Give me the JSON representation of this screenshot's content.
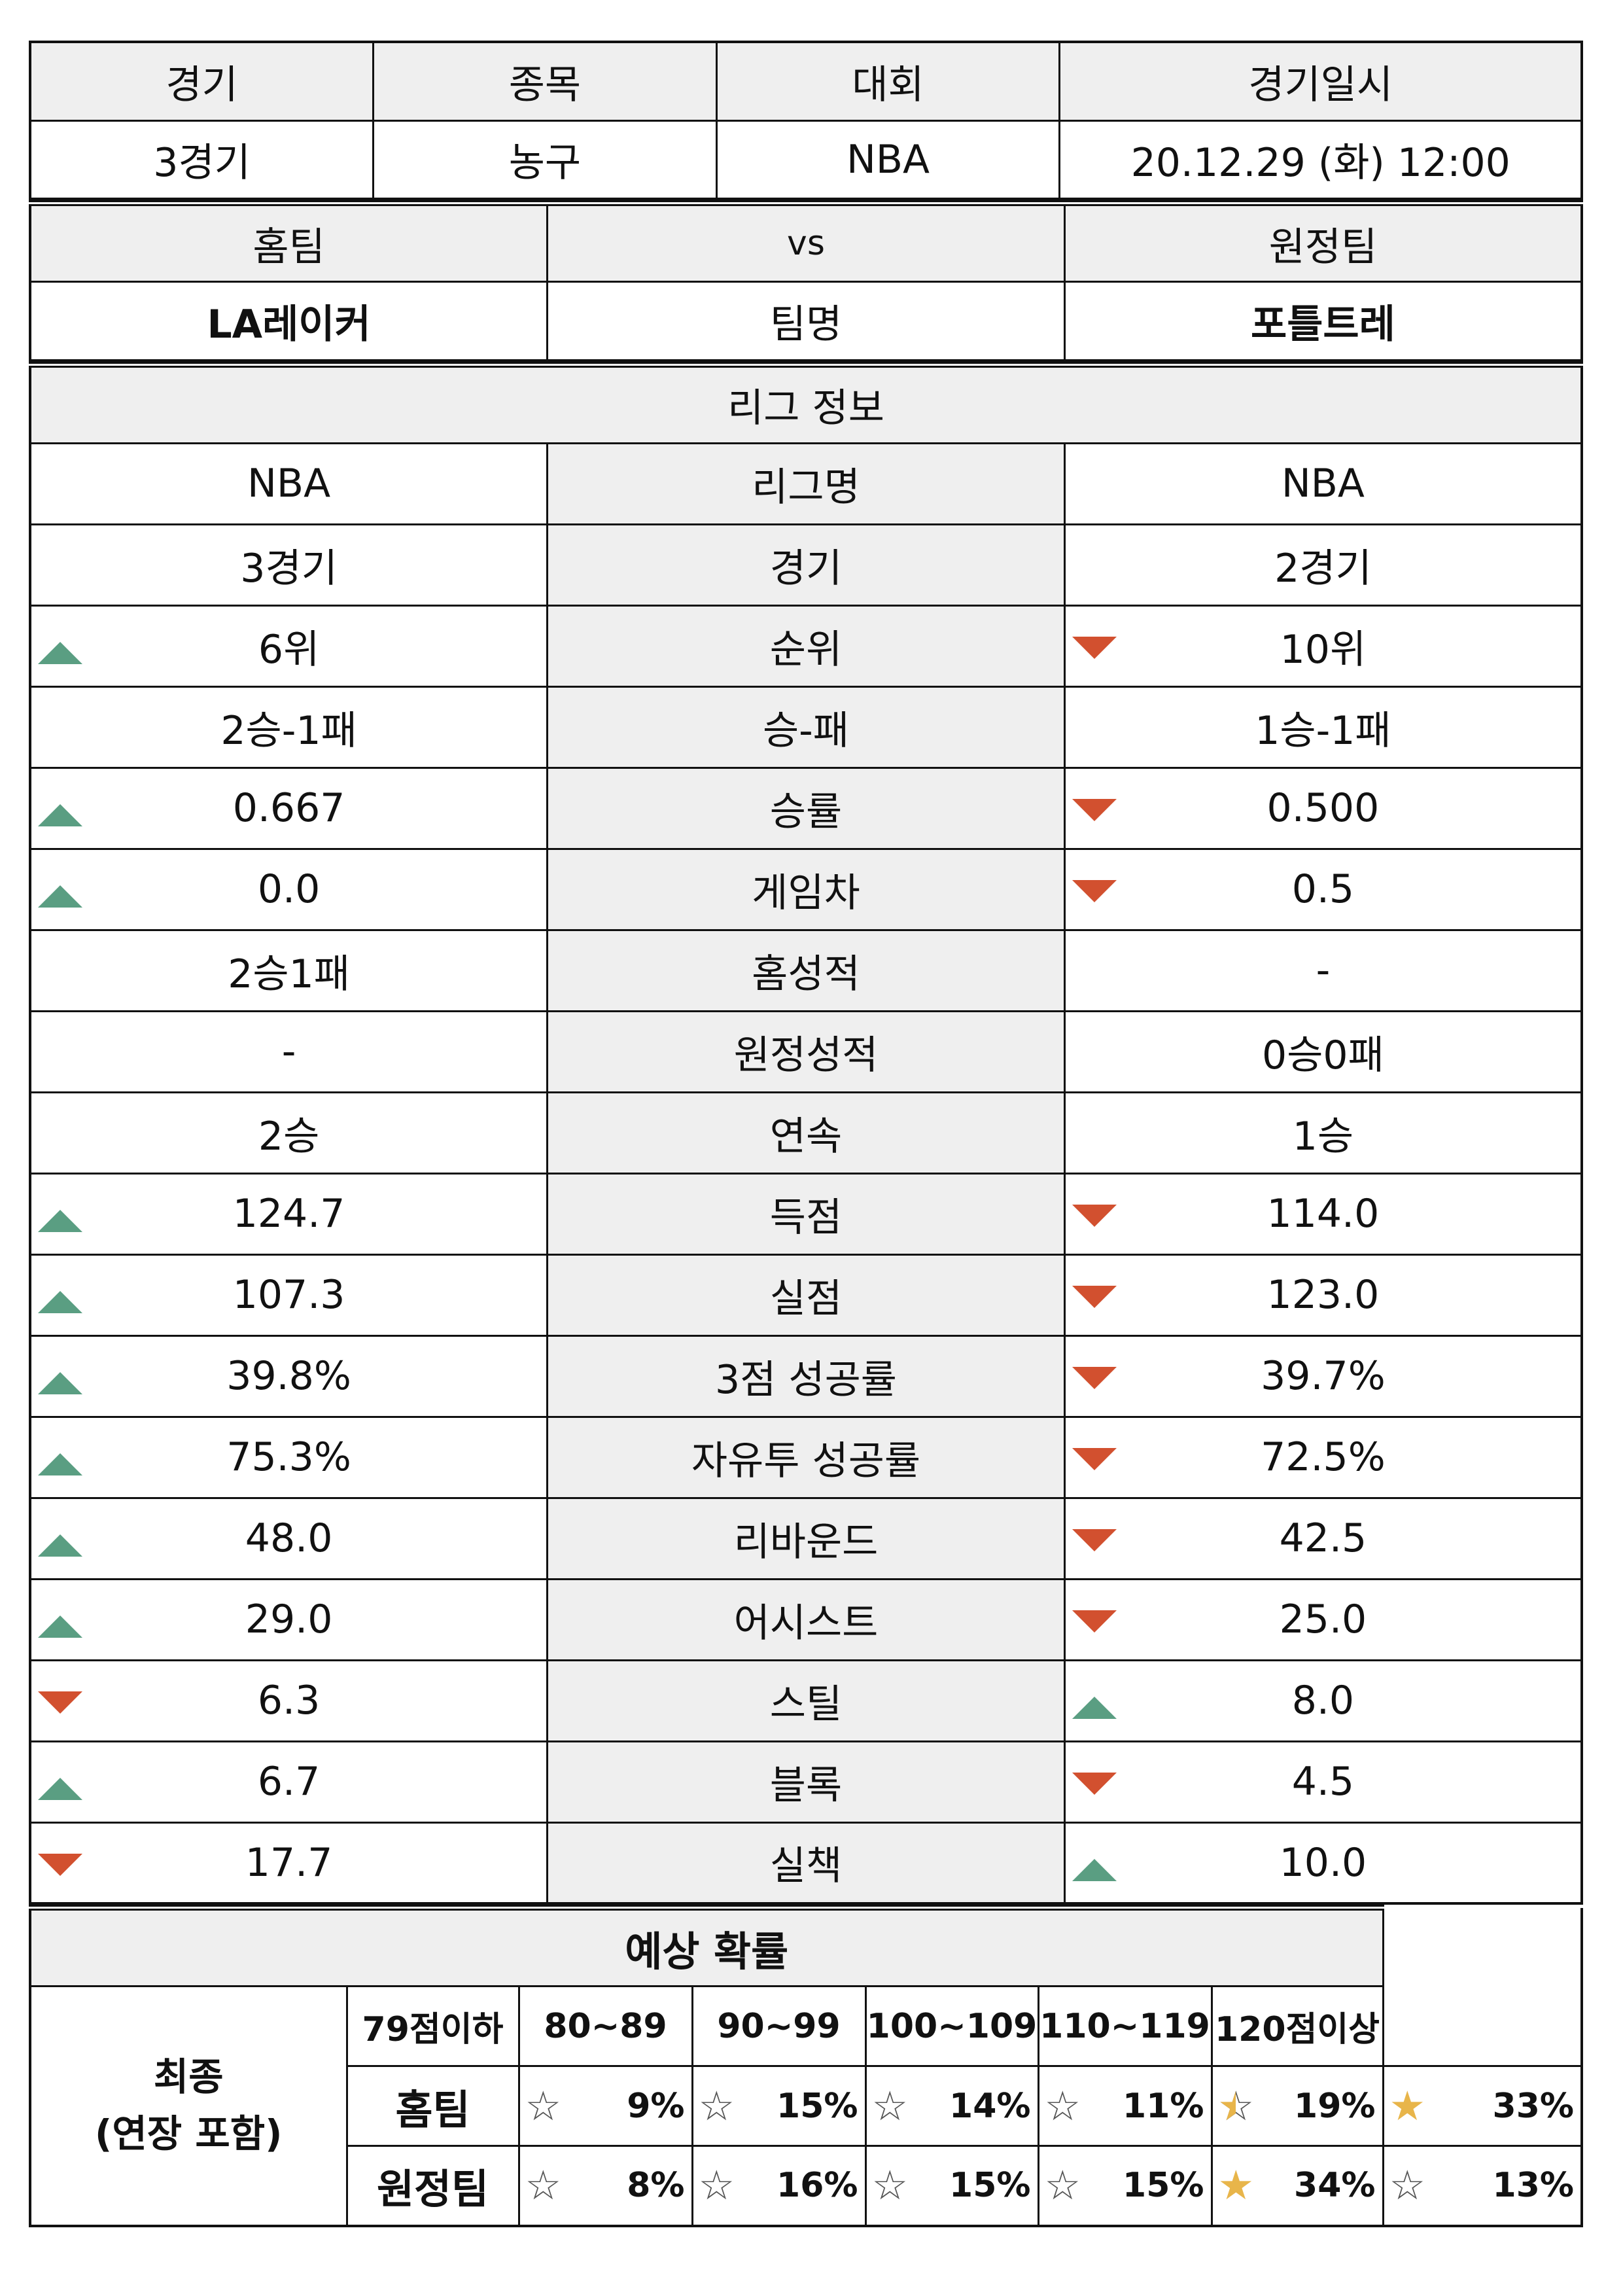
{
  "header": {
    "labels": [
      "경기",
      "종목",
      "대회",
      "경기일시"
    ],
    "values": [
      "3경기",
      "농구",
      "NBA",
      "20.12.29 (화) 12:00"
    ]
  },
  "teams": {
    "home_label": "홈팀",
    "vs_label": "vs",
    "away_label": "원정팀",
    "home_name": "LA레이커",
    "name_label": "팀명",
    "away_name": "포틀트레"
  },
  "league_info_title": "리그 정보",
  "stats": [
    {
      "label": "리그명",
      "home": "NBA",
      "away": "NBA",
      "home_trend": "",
      "away_trend": ""
    },
    {
      "label": "경기",
      "home": "3경기",
      "away": "2경기",
      "home_trend": "",
      "away_trend": ""
    },
    {
      "label": "순위",
      "home": "6위",
      "away": "10위",
      "home_trend": "up",
      "away_trend": "down"
    },
    {
      "label": "승-패",
      "home": "2승-1패",
      "away": "1승-1패",
      "home_trend": "",
      "away_trend": ""
    },
    {
      "label": "승률",
      "home": "0.667",
      "away": "0.500",
      "home_trend": "up",
      "away_trend": "down"
    },
    {
      "label": "게임차",
      "home": "0.0",
      "away": "0.5",
      "home_trend": "up",
      "away_trend": "down"
    },
    {
      "label": "홈성적",
      "home": "2승1패",
      "away": "-",
      "home_trend": "",
      "away_trend": ""
    },
    {
      "label": "원정성적",
      "home": "-",
      "away": "0승0패",
      "home_trend": "",
      "away_trend": ""
    },
    {
      "label": "연속",
      "home": "2승",
      "away": "1승",
      "home_trend": "",
      "away_trend": ""
    },
    {
      "label": "득점",
      "home": "124.7",
      "away": "114.0",
      "home_trend": "up",
      "away_trend": "down"
    },
    {
      "label": "실점",
      "home": "107.3",
      "away": "123.0",
      "home_trend": "up",
      "away_trend": "down"
    },
    {
      "label": "3점 성공률",
      "home": "39.8%",
      "away": "39.7%",
      "home_trend": "up",
      "away_trend": "down"
    },
    {
      "label": "자유투 성공률",
      "home": "75.3%",
      "away": "72.5%",
      "home_trend": "up",
      "away_trend": "down"
    },
    {
      "label": "리바운드",
      "home": "48.0",
      "away": "42.5",
      "home_trend": "up",
      "away_trend": "down"
    },
    {
      "label": "어시스트",
      "home": "29.0",
      "away": "25.0",
      "home_trend": "up",
      "away_trend": "down"
    },
    {
      "label": "스틸",
      "home": "6.3",
      "away": "8.0",
      "home_trend": "down",
      "away_trend": "up"
    },
    {
      "label": "블록",
      "home": "6.7",
      "away": "4.5",
      "home_trend": "up",
      "away_trend": "down"
    },
    {
      "label": "실책",
      "home": "17.7",
      "away": "10.0",
      "home_trend": "down",
      "away_trend": "up"
    }
  ],
  "trend_colors": {
    "up": "#5a9e82",
    "down": "#d2502f"
  },
  "prediction": {
    "title": "예상 확률",
    "final_label_line1": "최종",
    "final_label_line2": "(연장 포함)",
    "ranges": [
      "79점이하",
      "80~89",
      "90~99",
      "100~109",
      "110~119",
      "120점이상"
    ],
    "rows": [
      {
        "team": "홈팀",
        "cells": [
          {
            "pct": "9%",
            "star": "empty"
          },
          {
            "pct": "15%",
            "star": "empty"
          },
          {
            "pct": "14%",
            "star": "empty"
          },
          {
            "pct": "11%",
            "star": "empty"
          },
          {
            "pct": "19%",
            "star": "half"
          },
          {
            "pct": "33%",
            "star": "full"
          }
        ]
      },
      {
        "team": "원정팀",
        "cells": [
          {
            "pct": "8%",
            "star": "empty"
          },
          {
            "pct": "16%",
            "star": "empty"
          },
          {
            "pct": "15%",
            "star": "empty"
          },
          {
            "pct": "15%",
            "star": "empty"
          },
          {
            "pct": "34%",
            "star": "full"
          },
          {
            "pct": "13%",
            "star": "empty"
          }
        ]
      }
    ],
    "star_color": "#e8b54a"
  }
}
